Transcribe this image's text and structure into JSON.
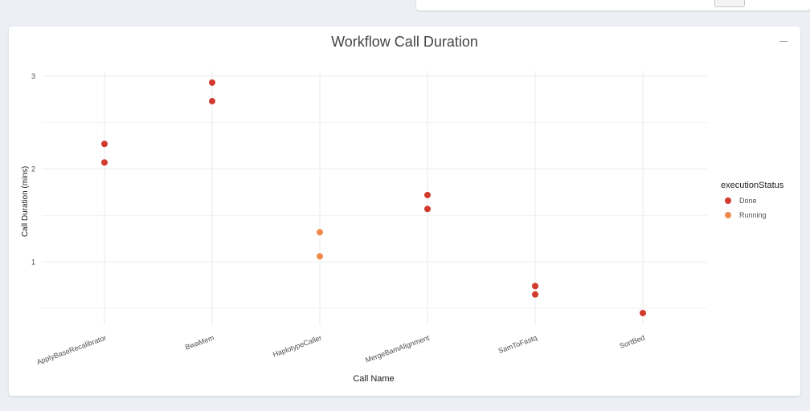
{
  "top_panel": {},
  "card": {
    "title": "Workflow Call Duration"
  },
  "colors": {
    "done": "#d13a2c",
    "running": "#f08a4b",
    "grid": "#ebebeb",
    "text": "#4d4d4d"
  },
  "chart_data": {
    "type": "scatter",
    "xlabel": "Call Name",
    "ylabel": "Call Duration (mins)",
    "categories": [
      "ApplyBaseRecalibrator",
      "BwaMem",
      "HaplotypeCaller",
      "MergeBamAlignment",
      "SamToFastq",
      "SortBed"
    ],
    "ylim": [
      0.32,
      3.05
    ],
    "yticks": [
      1,
      2,
      3
    ],
    "grid": true,
    "legend": {
      "title": "executionStatus",
      "position": "right"
    },
    "series": [
      {
        "name": "Done",
        "color": "#d13a2c",
        "points": [
          {
            "x": "ApplyBaseRecalibrator",
            "y": 2.27
          },
          {
            "x": "ApplyBaseRecalibrator",
            "y": 2.07
          },
          {
            "x": "BwaMem",
            "y": 2.93
          },
          {
            "x": "BwaMem",
            "y": 2.73
          },
          {
            "x": "MergeBamAlignment",
            "y": 1.72
          },
          {
            "x": "MergeBamAlignment",
            "y": 1.57
          },
          {
            "x": "SamToFastq",
            "y": 0.74
          },
          {
            "x": "SamToFastq",
            "y": 0.65
          },
          {
            "x": "SortBed",
            "y": 0.45
          }
        ]
      },
      {
        "name": "Running",
        "color": "#f08a4b",
        "points": [
          {
            "x": "HaplotypeCaller",
            "y": 1.32
          },
          {
            "x": "HaplotypeCaller",
            "y": 1.06
          }
        ]
      }
    ]
  }
}
